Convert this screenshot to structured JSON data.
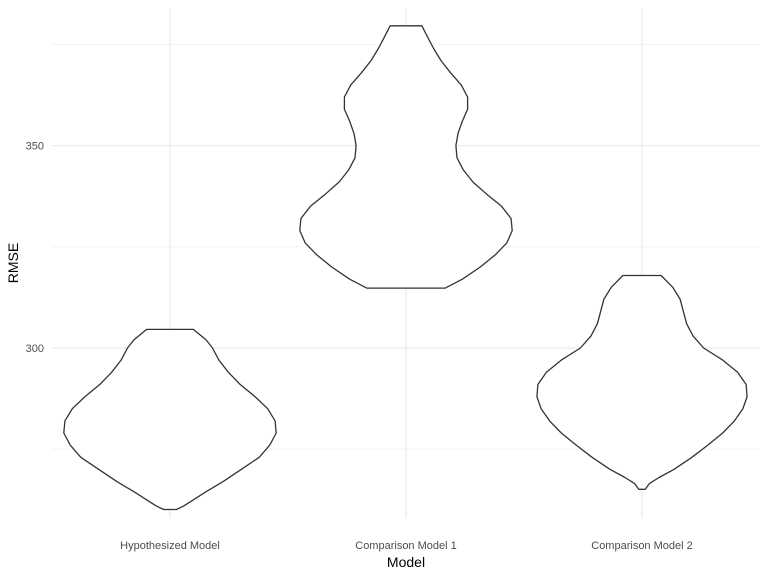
{
  "chart_data": {
    "type": "violin",
    "xlabel": "Model",
    "ylabel": "RMSE",
    "ylim": [
      258,
      384
    ],
    "y_ticks": [
      300,
      350
    ],
    "y_minor_gridlines": [
      275,
      325,
      375
    ],
    "grid": true,
    "legend": "none",
    "categories": [
      "Hypothesized Model",
      "Comparison Model 1",
      "Comparison Model 2"
    ],
    "series": [
      {
        "category": "Hypothesized Model",
        "min": 260.1,
        "max": 304.6,
        "density_profile": [
          [
            260.1,
            0.06
          ],
          [
            261.0,
            0.13
          ],
          [
            262.5,
            0.22
          ],
          [
            264.5,
            0.34
          ],
          [
            267.0,
            0.5
          ],
          [
            270.0,
            0.67
          ],
          [
            273.0,
            0.84
          ],
          [
            276.0,
            0.94
          ],
          [
            279.0,
            1.0
          ],
          [
            282.0,
            0.99
          ],
          [
            285.0,
            0.92
          ],
          [
            288.0,
            0.8
          ],
          [
            291.0,
            0.66
          ],
          [
            294.0,
            0.55
          ],
          [
            297.0,
            0.46
          ],
          [
            300.0,
            0.4
          ],
          [
            302.0,
            0.34
          ],
          [
            303.5,
            0.27
          ],
          [
            304.6,
            0.22
          ]
        ]
      },
      {
        "category": "Comparison Model 1",
        "min": 314.8,
        "max": 379.6,
        "density_profile": [
          [
            314.8,
            0.37
          ],
          [
            317.0,
            0.53
          ],
          [
            320.0,
            0.7
          ],
          [
            323.0,
            0.84
          ],
          [
            326.0,
            0.95
          ],
          [
            329.0,
            1.0
          ],
          [
            332.0,
            0.99
          ],
          [
            335.0,
            0.9
          ],
          [
            338.0,
            0.76
          ],
          [
            341.0,
            0.63
          ],
          [
            344.0,
            0.54
          ],
          [
            347.0,
            0.48
          ],
          [
            350.0,
            0.47
          ],
          [
            353.0,
            0.49
          ],
          [
            356.0,
            0.53
          ],
          [
            359.0,
            0.58
          ],
          [
            362.0,
            0.58
          ],
          [
            365.0,
            0.52
          ],
          [
            368.0,
            0.42
          ],
          [
            371.0,
            0.33
          ],
          [
            374.0,
            0.26
          ],
          [
            377.0,
            0.2
          ],
          [
            379.6,
            0.15
          ]
        ]
      },
      {
        "category": "Comparison Model 2",
        "min": 265.1,
        "max": 317.9,
        "density_profile": [
          [
            265.1,
            0.03
          ],
          [
            266.5,
            0.07
          ],
          [
            268.0,
            0.16
          ],
          [
            270.0,
            0.3
          ],
          [
            273.0,
            0.47
          ],
          [
            276.0,
            0.62
          ],
          [
            279.0,
            0.76
          ],
          [
            282.0,
            0.87
          ],
          [
            285.0,
            0.95
          ],
          [
            288.0,
            0.99
          ],
          [
            291.0,
            0.98
          ],
          [
            294.0,
            0.9
          ],
          [
            297.0,
            0.76
          ],
          [
            300.0,
            0.58
          ],
          [
            303.0,
            0.48
          ],
          [
            306.0,
            0.42
          ],
          [
            309.0,
            0.39
          ],
          [
            312.0,
            0.36
          ],
          [
            315.0,
            0.29
          ],
          [
            317.9,
            0.18
          ]
        ]
      }
    ]
  }
}
